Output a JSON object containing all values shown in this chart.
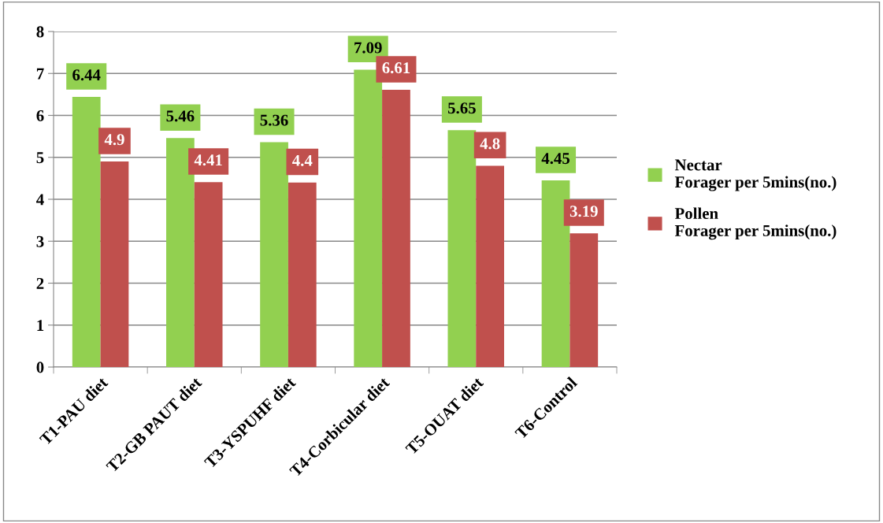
{
  "chart_data": {
    "type": "bar",
    "categories": [
      "T1-PAU diet",
      "T2-GB PAUT diet",
      "T3-YSPUHF diet",
      "T4-Corbicular diet",
      "T5-OUAT diet",
      "T6-Control"
    ],
    "series": [
      {
        "name": "Nectar\nForager per 5mins(no.)",
        "color": "#92d050",
        "values": [
          6.44,
          5.46,
          5.36,
          7.09,
          5.65,
          4.45
        ]
      },
      {
        "name": "Pollen\nForager per 5mins(no.)",
        "color": "#c0504d",
        "values": [
          4.9,
          4.41,
          4.4,
          6.61,
          4.8,
          3.19
        ]
      }
    ],
    "ylim": [
      0,
      8
    ],
    "yticks": [
      0,
      1,
      2,
      3,
      4,
      5,
      6,
      7,
      8
    ],
    "grid": "y",
    "legend": "right",
    "data_labels": true
  }
}
